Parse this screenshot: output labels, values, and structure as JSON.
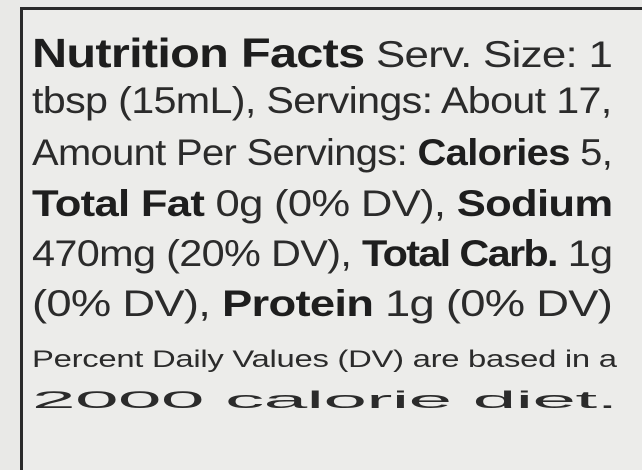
{
  "label": {
    "title": "Nutrition Facts",
    "lines": [
      {
        "parts": [
          {
            "text": "Nutrition Facts",
            "bold": true
          },
          {
            "text": " Serv. Size: 1",
            "bold": false
          }
        ]
      },
      {
        "parts": [
          {
            "text": "tbsp (15mL), Servings: About 17,",
            "bold": false
          }
        ]
      },
      {
        "parts": [
          {
            "text": "Amount Per Servings: ",
            "bold": false
          },
          {
            "text": "Calories",
            "bold": true
          },
          {
            "text": " 5,",
            "bold": false
          }
        ]
      },
      {
        "parts": [
          {
            "text": "Total Fat",
            "bold": true
          },
          {
            "text": " 0g (0% DV), ",
            "bold": false
          },
          {
            "text": "Sodium",
            "bold": true
          }
        ]
      },
      {
        "parts": [
          {
            "text": "470mg (20% DV), ",
            "bold": false
          },
          {
            "text": "Total Carb.",
            "bold": true
          },
          {
            "text": " 1g",
            "bold": false
          }
        ]
      },
      {
        "parts": [
          {
            "text": "(0% DV), ",
            "bold": false
          },
          {
            "text": "Protein",
            "bold": true
          },
          {
            "text": " 1g (0% DV)",
            "bold": false
          }
        ]
      }
    ],
    "footnote": [
      "Percent Daily Values (DV) are based in a",
      "2000 calorie diet."
    ]
  }
}
